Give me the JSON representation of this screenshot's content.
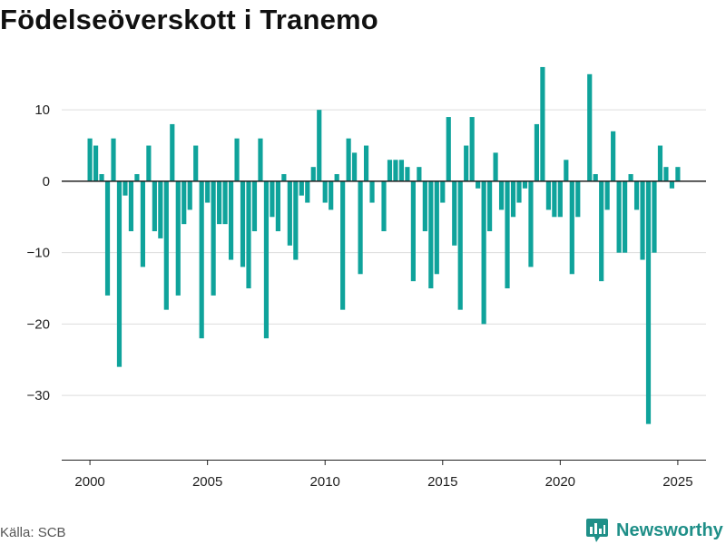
{
  "header": {
    "title": "Födelseöverskott i Tranemo"
  },
  "footer": {
    "source": "Källa: SCB",
    "brand": "Newsworthy"
  },
  "colors": {
    "bar": "#0fa39b",
    "grid": "#dddddd",
    "axis": "#222222",
    "brand": "#1f8f88"
  },
  "chart_data": {
    "type": "bar",
    "title": "Födelseöverskott i Tranemo",
    "xlabel": "",
    "ylabel": "",
    "xlim": [
      1998.8,
      2026.2
    ],
    "ylim": [
      -39,
      16.5
    ],
    "grid": true,
    "yticks": [
      10,
      0,
      -10,
      -20,
      -30
    ],
    "ytick_labels": [
      "10",
      "0",
      "−10",
      "−20",
      "−30"
    ],
    "xticks": [
      2000,
      2005,
      2010,
      2015,
      2020,
      2025
    ],
    "xtick_labels": [
      "2000",
      "2005",
      "2010",
      "2015",
      "2020",
      "2025"
    ],
    "start_year": 2000,
    "values": [
      6,
      5,
      1,
      -16,
      6,
      -26,
      -2,
      -7,
      1,
      -12,
      5,
      -7,
      -8,
      -18,
      8,
      -16,
      -6,
      -4,
      5,
      -22,
      -3,
      -16,
      -6,
      -6,
      -11,
      6,
      -12,
      -15,
      -7,
      6,
      -22,
      -5,
      -7,
      1,
      -9,
      -11,
      -2,
      -3,
      2,
      10,
      -3,
      -4,
      1,
      -18,
      6,
      4,
      -13,
      5,
      -3,
      0,
      -7,
      3,
      3,
      3,
      2,
      -14,
      2,
      -7,
      -15,
      -13,
      -3,
      9,
      -9,
      -18,
      5,
      9,
      -1,
      -20,
      -7,
      4,
      -4,
      -15,
      -5,
      -3,
      -1,
      -12,
      8,
      16,
      -4,
      -5,
      -5,
      3,
      -13,
      -5,
      0,
      15,
      1,
      -14,
      -4,
      7,
      -10,
      -10,
      1,
      -4,
      -11,
      -34,
      -10,
      5,
      2,
      -1,
      2
    ]
  }
}
